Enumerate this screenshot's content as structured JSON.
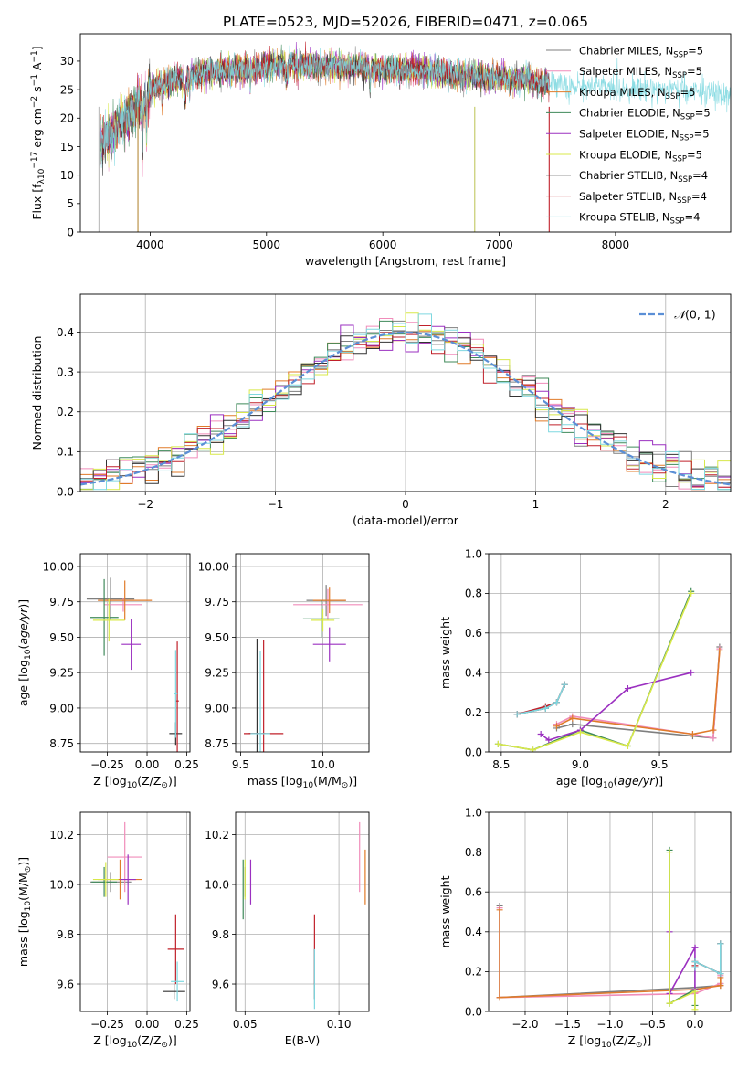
{
  "figure_title": "PLATE=0523, MJD=52026, FIBERID=0471, z=0.065",
  "models": [
    {
      "name": "Chabrier MILES, N_SSP=5",
      "base": "Chabrier MILES, N",
      "sub": "SSP",
      "tail": "=5",
      "color": "#7f7f7f"
    },
    {
      "name": "Salpeter MILES, N_SSP=5",
      "base": "Salpeter MILES, N",
      "sub": "SSP",
      "tail": "=5",
      "color": "#f08cba"
    },
    {
      "name": "Kroupa MILES, N_SSP=5",
      "base": "Kroupa MILES, N",
      "sub": "SSP",
      "tail": "=5",
      "color": "#e07b2a"
    },
    {
      "name": "Chabrier ELODIE, N_SSP=5",
      "base": "Chabrier ELODIE, N",
      "sub": "SSP",
      "tail": "=5",
      "color": "#3f8a5a"
    },
    {
      "name": "Salpeter ELODIE, N_SSP=5",
      "base": "Salpeter ELODIE, N",
      "sub": "SSP",
      "tail": "=5",
      "color": "#9b30c0"
    },
    {
      "name": "Kroupa ELODIE, N_SSP=5",
      "base": "Kroupa ELODIE, N",
      "sub": "SSP",
      "tail": "=5",
      "color": "#d8e84a"
    },
    {
      "name": "Chabrier STELIB, N_SSP=4",
      "base": "Chabrier STELIB, N",
      "sub": "SSP",
      "tail": "=4",
      "color": "#333333"
    },
    {
      "name": "Salpeter STELIB, N_SSP=4",
      "base": "Salpeter STELIB, N",
      "sub": "SSP",
      "tail": "=4",
      "color": "#c0202a"
    },
    {
      "name": "Kroupa STELIB, N_SSP=4",
      "base": "Kroupa STELIB, N",
      "sub": "SSP",
      "tail": "=4",
      "color": "#7fd8e0"
    }
  ],
  "chart_data": [
    {
      "id": "spectrum",
      "type": "line",
      "xlabel": "wavelength [Angstrom, rest frame]",
      "ylabel": "Flux [f_λ 10^-17 erg cm^-2 s^-1 A^-1]",
      "ylabel_parts": [
        "Flux [f",
        "λ",
        "10",
        "−17",
        " erg cm",
        "−2",
        " s",
        "−1",
        " A",
        "−1",
        "]"
      ],
      "xlim": [
        3400,
        8990
      ],
      "ylim": [
        0,
        34.8
      ],
      "xticks": [
        4000,
        5000,
        6000,
        7000,
        8000
      ],
      "yticks": [
        0,
        5,
        10,
        15,
        20,
        25,
        30
      ],
      "grid": false,
      "legend": "right",
      "continuum": [
        [
          3560,
          15
        ],
        [
          3620,
          16.5
        ],
        [
          3700,
          18
        ],
        [
          3800,
          20
        ],
        [
          3880,
          22
        ],
        [
          3950,
          23
        ],
        [
          4000,
          25
        ],
        [
          4100,
          26
        ],
        [
          4250,
          27
        ],
        [
          4500,
          28
        ],
        [
          4800,
          28.5
        ],
        [
          5000,
          29
        ],
        [
          5200,
          29.5
        ],
        [
          5500,
          29
        ],
        [
          5800,
          29
        ],
        [
          6000,
          28.5
        ],
        [
          6300,
          28.5
        ],
        [
          6500,
          28
        ],
        [
          6700,
          27.5
        ],
        [
          7000,
          27
        ],
        [
          7200,
          26.8
        ],
        [
          7400,
          26
        ],
        [
          7700,
          25.7
        ],
        [
          8000,
          25.2
        ],
        [
          8500,
          25
        ],
        [
          8990,
          24
        ]
      ],
      "line_ranges": [
        [
          3560,
          7430
        ],
        [
          3560,
          7430
        ],
        [
          3560,
          7430
        ],
        [
          3560,
          7430
        ],
        [
          3560,
          7430
        ],
        [
          3560,
          7430
        ],
        [
          3560,
          7430
        ],
        [
          3560,
          7430
        ],
        [
          3560,
          8990
        ]
      ]
    },
    {
      "id": "residuals",
      "type": "histogram",
      "xlabel": "(data-model)/error",
      "ylabel": "Normed distribution",
      "xlim": [
        -2.5,
        2.5
      ],
      "ylim": [
        0,
        0.495
      ],
      "xticks": [
        -2,
        -1,
        0,
        1,
        2
      ],
      "yticks": [
        0.0,
        0.1,
        0.2,
        0.3,
        0.4
      ],
      "grid": true,
      "legend": "top-right",
      "reference": {
        "name": "N(0,1)",
        "label_main": "𝒩",
        "label_tail": "(0, 1)",
        "color": "#5b8fd6",
        "mean": 0,
        "sigma": 1
      },
      "bin_width": 0.1,
      "bin_start": -2.5
    },
    {
      "id": "age_vs_Z",
      "type": "errorbar",
      "xlabel_parts": [
        "Z [log",
        "10",
        "(Z/Z",
        "⊙",
        ")]"
      ],
      "ylabel_parts": [
        "age  [log",
        "10",
        "(",
        "age/yr",
        ")]"
      ],
      "xlim": [
        -0.42,
        0.27
      ],
      "ylim": [
        8.69,
        10.09
      ],
      "xticks": [
        -0.25,
        0.0,
        0.25
      ],
      "yticks": [
        8.75,
        9.0,
        9.25,
        9.5,
        9.75,
        10.0
      ],
      "grid": true,
      "points": [
        {
          "x": -0.23,
          "xerr": 0.15,
          "y": 9.77,
          "yerr": 0.15
        },
        {
          "x": -0.15,
          "xerr": 0.12,
          "y": 9.73,
          "yerr": 0.05
        },
        {
          "x": -0.14,
          "xerr": 0.17,
          "y": 9.76,
          "yerr": 0.14
        },
        {
          "x": -0.27,
          "xerr": 0.09,
          "y": 9.64,
          "yerr": 0.27
        },
        {
          "x": -0.1,
          "xerr": 0.06,
          "y": 9.45,
          "yerr": 0.18
        },
        {
          "x": -0.24,
          "xerr": 0.1,
          "y": 9.62,
          "yerr": 0.15
        },
        {
          "x": 0.18,
          "xerr": 0.04,
          "y": 8.82,
          "yerr": 0.08
        },
        {
          "x": 0.19,
          "xerr": 0.01,
          "y": 9.05,
          "yerr": 0.42
        },
        {
          "x": 0.18,
          "xerr": 0.01,
          "y": 9.1,
          "yerr": 0.31
        }
      ]
    },
    {
      "id": "age_vs_mass",
      "type": "errorbar",
      "xlabel_parts": [
        "mass [log",
        "10",
        "(M/M",
        "⊙",
        ")]"
      ],
      "xlim": [
        9.47,
        10.28
      ],
      "ylim": [
        8.69,
        10.09
      ],
      "xticks": [
        9.5,
        10.0
      ],
      "yticks": [
        8.75,
        9.0,
        9.25,
        9.5,
        9.75,
        10.0
      ],
      "grid": true,
      "points": [
        {
          "x": 10.02,
          "xerr": 0.12,
          "y": 9.76,
          "yerr": 0.11
        },
        {
          "x": 10.03,
          "xerr": 0.21,
          "y": 9.73,
          "yerr": 0.11
        },
        {
          "x": 10.04,
          "xerr": 0.1,
          "y": 9.76,
          "yerr": 0.09
        },
        {
          "x": 9.99,
          "xerr": 0.11,
          "y": 9.63,
          "yerr": 0.13
        },
        {
          "x": 10.04,
          "xerr": 0.1,
          "y": 9.45,
          "yerr": 0.12
        },
        {
          "x": 10.0,
          "xerr": 0.07,
          "y": 9.62,
          "yerr": 0.08
        },
        {
          "x": 9.6,
          "xerr": 0.05,
          "y": 8.82,
          "yerr": 0.67
        },
        {
          "x": 9.64,
          "xerr": 0.12,
          "y": 8.82,
          "yerr": 0.66
        },
        {
          "x": 9.62,
          "xerr": 0.06,
          "y": 8.82,
          "yerr": 0.58
        }
      ]
    },
    {
      "id": "weight_vs_age",
      "type": "line",
      "xlabel_parts": [
        "age  [log",
        "10",
        "(",
        "age/yr",
        ")]"
      ],
      "ylabel": "mass weight",
      "xlim": [
        8.42,
        9.95
      ],
      "ylim": [
        0,
        1.0
      ],
      "xticks": [
        8.5,
        9.0,
        9.5
      ],
      "yticks": [
        0.0,
        0.2,
        0.4,
        0.6,
        0.8,
        1.0
      ],
      "grid": true,
      "series": [
        {
          "x": [
            8.85,
            8.95,
            9.71,
            9.84,
            9.88
          ],
          "y": [
            0.12,
            0.14,
            0.08,
            0.07,
            0.53
          ]
        },
        {
          "x": [
            8.85,
            8.95,
            9.71,
            9.84,
            9.88
          ],
          "y": [
            0.14,
            0.18,
            0.09,
            0.07,
            0.52
          ]
        },
        {
          "x": [
            8.85,
            8.95,
            9.71,
            9.84,
            9.88
          ],
          "y": [
            0.13,
            0.17,
            0.09,
            0.11,
            0.51
          ]
        },
        {
          "x": [
            8.48,
            8.7,
            9.0,
            9.3,
            9.7
          ],
          "y": [
            0.04,
            0.01,
            0.11,
            0.03,
            0.81
          ]
        },
        {
          "x": [
            8.75,
            8.8,
            9.0,
            9.3,
            9.7
          ],
          "y": [
            0.09,
            0.06,
            0.11,
            0.32,
            0.4
          ]
        },
        {
          "x": [
            8.48,
            8.7,
            9.0,
            9.3,
            9.7
          ],
          "y": [
            0.04,
            0.01,
            0.1,
            0.03,
            0.8
          ]
        },
        {
          "x": [
            8.6,
            8.78,
            8.85,
            8.9
          ],
          "y": [
            0.19,
            0.22,
            0.25,
            0.34
          ]
        },
        {
          "x": [
            8.6,
            8.78,
            8.85,
            8.9
          ],
          "y": [
            0.19,
            0.23,
            0.25,
            0.34
          ]
        },
        {
          "x": [
            8.6,
            8.78,
            8.85,
            8.9
          ],
          "y": [
            0.19,
            0.22,
            0.25,
            0.34
          ]
        }
      ]
    },
    {
      "id": "mass_vs_Z",
      "type": "errorbar",
      "xlabel_parts": [
        "Z [log",
        "10",
        "(Z/Z",
        "⊙",
        ")]"
      ],
      "ylabel_parts": [
        "mass [log",
        "10",
        "(M/M",
        "⊙",
        ")]"
      ],
      "xlim": [
        -0.42,
        0.27
      ],
      "ylim": [
        9.49,
        10.29
      ],
      "xticks": [
        -0.25,
        0.0,
        0.25
      ],
      "yticks": [
        9.6,
        9.8,
        10.0,
        10.2
      ],
      "grid": true,
      "points": [
        {
          "x": -0.23,
          "xerr": 0.13,
          "y": 10.01,
          "yerr": 0.04
        },
        {
          "x": -0.14,
          "xerr": 0.11,
          "y": 10.11,
          "yerr": 0.14
        },
        {
          "x": -0.17,
          "xerr": 0.14,
          "y": 10.02,
          "yerr": 0.08
        },
        {
          "x": -0.27,
          "xerr": 0.08,
          "y": 10.01,
          "yerr": 0.06
        },
        {
          "x": -0.12,
          "xerr": 0.05,
          "y": 10.02,
          "yerr": 0.1
        },
        {
          "x": -0.26,
          "xerr": 0.08,
          "y": 10.02,
          "yerr": 0.07
        },
        {
          "x": 0.17,
          "xerr": 0.07,
          "y": 9.57,
          "yerr": 0.03
        },
        {
          "x": 0.18,
          "xerr": 0.05,
          "y": 9.74,
          "yerr": 0.14
        },
        {
          "x": 0.19,
          "xerr": 0.04,
          "y": 9.61,
          "yerr": 0.08
        }
      ]
    },
    {
      "id": "mass_vs_ebv",
      "type": "errorbar",
      "xlabel": "E(B-V)",
      "xlim": [
        0.045,
        0.116
      ],
      "ylim": [
        9.49,
        10.29
      ],
      "xticks": [
        0.05,
        0.1
      ],
      "yticks": [
        9.6,
        9.8,
        10.0,
        10.2
      ],
      "grid": true,
      "points": [
        {
          "x": 0.05,
          "y": 10.01,
          "yerr": 0.06
        },
        {
          "x": 0.111,
          "y": 10.11,
          "yerr": 0.14
        },
        {
          "x": 0.114,
          "y": 10.03,
          "yerr": 0.11
        },
        {
          "x": 0.049,
          "y": 9.98,
          "yerr": 0.12
        },
        {
          "x": 0.053,
          "y": 10.01,
          "yerr": 0.09
        },
        {
          "x": 0.05,
          "y": 10.02,
          "yerr": 0.08
        },
        {
          "x": 0.087,
          "y": 9.64,
          "yerr": 0.1
        },
        {
          "x": 0.087,
          "y": 9.74,
          "yerr": 0.14
        },
        {
          "x": 0.087,
          "y": 9.62,
          "yerr": 0.12
        }
      ]
    },
    {
      "id": "weight_vs_Z",
      "type": "line",
      "xlabel_parts": [
        "Z [log",
        "10",
        "(Z/Z",
        "⊙",
        ")]"
      ],
      "ylabel": "mass weight",
      "xlim": [
        -2.43,
        0.42
      ],
      "ylim": [
        0,
        1.0
      ],
      "xticks": [
        -2.0,
        -1.5,
        -1.0,
        -0.5,
        0.0
      ],
      "yticks": [
        0.0,
        0.2,
        0.4,
        0.6,
        0.8,
        1.0
      ],
      "grid": true,
      "series": [
        {
          "x": [
            -2.3,
            -2.3,
            0.0,
            0.3,
            0.3
          ],
          "y": [
            0.53,
            0.07,
            0.12,
            0.13,
            0.14
          ]
        },
        {
          "x": [
            -2.3,
            -2.3,
            0.0,
            0.3,
            0.3
          ],
          "y": [
            0.52,
            0.07,
            0.09,
            0.14,
            0.18
          ]
        },
        {
          "x": [
            -2.3,
            -2.3,
            0.0,
            0.3,
            0.3
          ],
          "y": [
            0.51,
            0.07,
            0.11,
            0.13,
            0.17
          ]
        },
        {
          "x": [
            -0.3,
            -0.3,
            0.0,
            0.0
          ],
          "y": [
            0.81,
            0.04,
            0.11,
            0.03
          ]
        },
        {
          "x": [
            -0.3,
            -0.3,
            0.0,
            0.0
          ],
          "y": [
            0.4,
            0.09,
            0.32,
            0.11
          ]
        },
        {
          "x": [
            -0.3,
            -0.3,
            0.0,
            0.0
          ],
          "y": [
            0.8,
            0.04,
            0.1,
            0.01
          ]
        },
        {
          "x": [
            0.0,
            0.0,
            0.3,
            0.3
          ],
          "y": [
            0.22,
            0.25,
            0.19,
            0.34
          ]
        },
        {
          "x": [
            0.0,
            0.0,
            0.3,
            0.3
          ],
          "y": [
            0.23,
            0.25,
            0.19,
            0.34
          ]
        },
        {
          "x": [
            0.0,
            0.0,
            0.3,
            0.3
          ],
          "y": [
            0.22,
            0.25,
            0.19,
            0.34
          ]
        }
      ]
    }
  ]
}
